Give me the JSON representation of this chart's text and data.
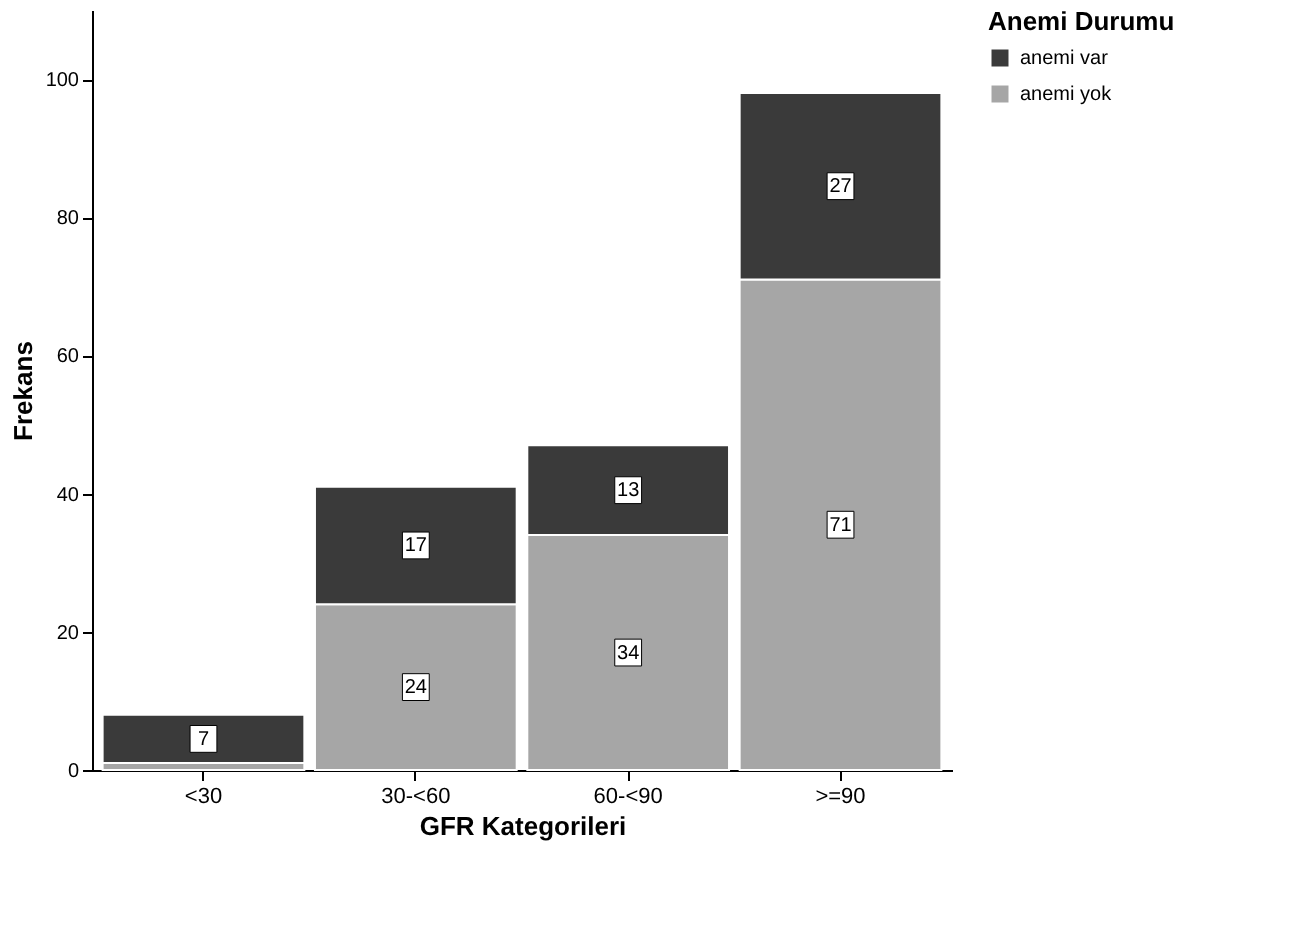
{
  "chart_data": {
    "type": "bar",
    "stacked": true,
    "xlabel": "GFR Kategorileri",
    "ylabel": "Frekans",
    "legend_title": "Anemi Durumu",
    "legend": "top right",
    "grid": false,
    "categories": [
      "<30",
      "30-<60",
      "60-<90",
      ">=90"
    ],
    "series": [
      {
        "name": "anemi yok",
        "color": "#a6a6a6",
        "values": [
          1,
          24,
          34,
          71
        ],
        "value_labels": [
          null,
          "24",
          "34",
          "71"
        ]
      },
      {
        "name": "anemi var",
        "color": "#3a3a3a",
        "values": [
          7,
          17,
          13,
          27
        ],
        "value_labels": [
          "7",
          "17",
          "13",
          "27"
        ]
      }
    ],
    "ylim": [
      0,
      110
    ],
    "yticks": [
      0,
      20,
      40,
      60,
      80,
      100
    ]
  }
}
